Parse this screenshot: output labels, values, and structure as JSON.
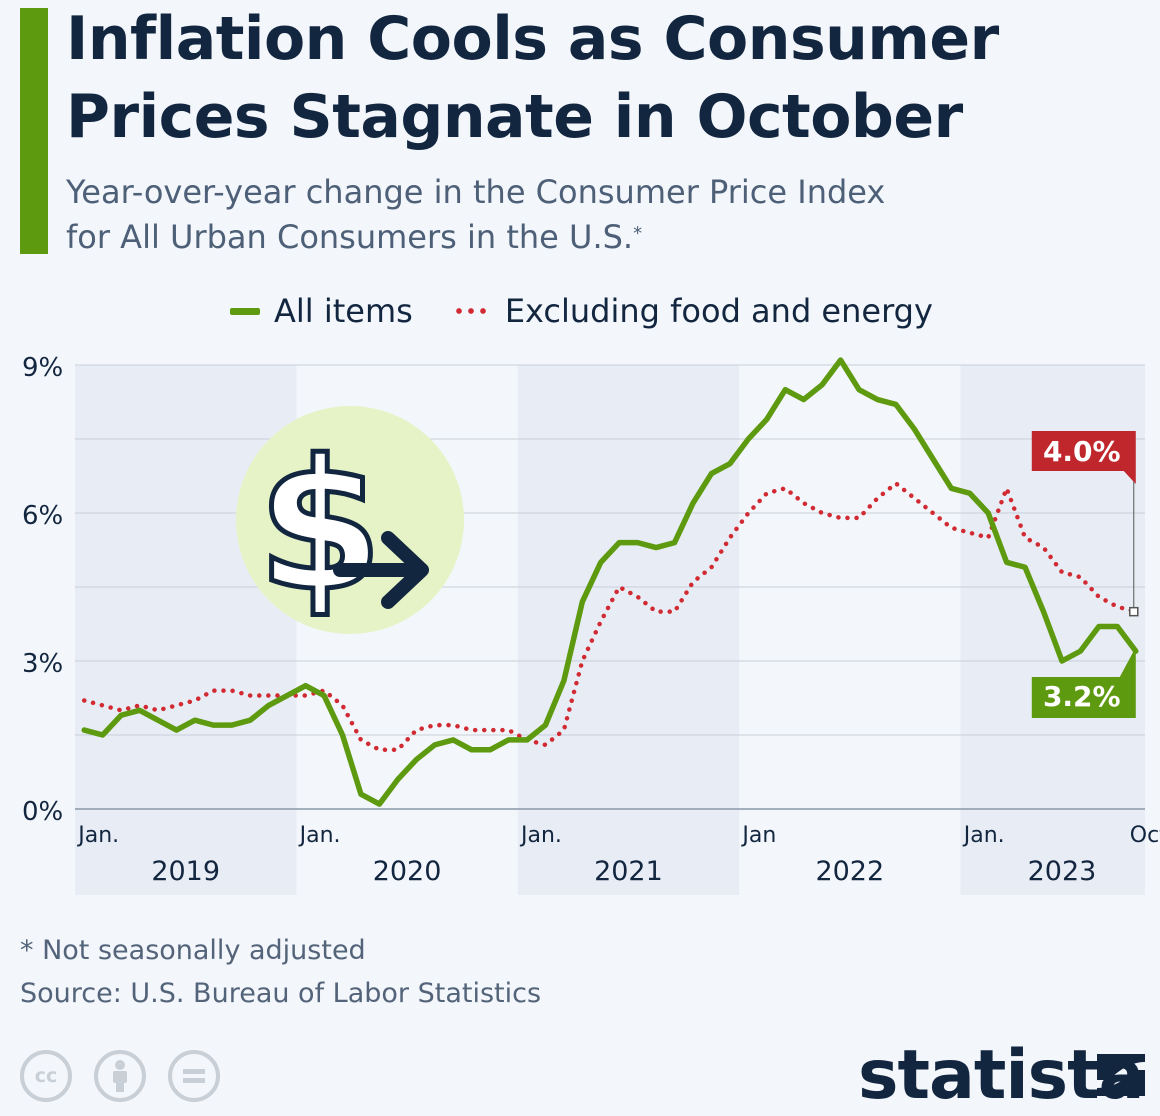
{
  "title_line1": "Inflation Cools as Consumer",
  "title_line2": "Prices Stagnate in October",
  "subtitle_line1": "Year-over-year change in the Consumer Price Index",
  "subtitle_line2": "for All Urban Consumers in the U.S.",
  "subtitle_footnote_mark": "*",
  "footnote": "* Not seasonally adjusted",
  "source": "Source: U.S. Bureau of Labor Statistics",
  "brand": "statista",
  "license_icons": [
    "cc-icon",
    "attribution-icon",
    "no-derivatives-icon"
  ],
  "colors": {
    "all_items": "#5e9a10",
    "core": "#d12a33",
    "title": "#12263f",
    "year_band": "#e8edf5",
    "label_red": "#c0272d",
    "label_green": "#5e9a10"
  },
  "chart_data": {
    "type": "line",
    "title": "Inflation Cools as Consumer Prices Stagnate in October",
    "ylim": [
      0,
      9
    ],
    "yticks": [
      0,
      3,
      6,
      9
    ],
    "ytick_labels": [
      "0%",
      "3%",
      "6%",
      "9%"
    ],
    "grid": true,
    "legend_position": "top",
    "x_month_labels": [
      {
        "index": 0,
        "label": "Jan."
      },
      {
        "index": 12,
        "label": "Jan."
      },
      {
        "index": 24,
        "label": "Jan."
      },
      {
        "index": 36,
        "label": "Jan"
      },
      {
        "index": 48,
        "label": "Jan."
      },
      {
        "index": 57,
        "label": "Oct."
      }
    ],
    "x_year_labels": [
      {
        "center_index": 5.5,
        "label": "2019"
      },
      {
        "center_index": 17.5,
        "label": "2020"
      },
      {
        "center_index": 29.5,
        "label": "2021"
      },
      {
        "center_index": 41.5,
        "label": "2022"
      },
      {
        "center_index": 53,
        "label": "2023"
      }
    ],
    "x_start": "2019-01",
    "x_end": "2023-10",
    "series": [
      {
        "name": "All items",
        "style": "solid",
        "values": [
          1.6,
          1.5,
          1.9,
          2.0,
          1.8,
          1.6,
          1.8,
          1.7,
          1.7,
          1.8,
          2.1,
          2.3,
          2.5,
          2.3,
          1.5,
          0.3,
          0.1,
          0.6,
          1.0,
          1.3,
          1.4,
          1.2,
          1.2,
          1.4,
          1.4,
          1.7,
          2.6,
          4.2,
          5.0,
          5.4,
          5.4,
          5.3,
          5.4,
          6.2,
          6.8,
          7.0,
          7.5,
          7.9,
          8.5,
          8.3,
          8.6,
          9.1,
          8.5,
          8.3,
          8.2,
          7.7,
          7.1,
          6.5,
          6.4,
          6.0,
          5.0,
          4.9,
          4.0,
          3.0,
          3.2,
          3.7,
          3.7,
          3.2
        ],
        "end_label": "3.2%"
      },
      {
        "name": "Excluding food and energy",
        "style": "dotted",
        "values": [
          2.2,
          2.1,
          2.0,
          2.1,
          2.0,
          2.1,
          2.2,
          2.4,
          2.4,
          2.3,
          2.3,
          2.3,
          2.3,
          2.4,
          2.1,
          1.4,
          1.2,
          1.2,
          1.6,
          1.7,
          1.7,
          1.6,
          1.6,
          1.6,
          1.4,
          1.3,
          1.6,
          3.0,
          3.8,
          4.5,
          4.3,
          4.0,
          4.0,
          4.6,
          4.9,
          5.5,
          6.0,
          6.4,
          6.5,
          6.2,
          6.0,
          5.9,
          5.9,
          6.3,
          6.6,
          6.3,
          6.0,
          5.7,
          5.6,
          5.5,
          6.5,
          5.5,
          5.3,
          4.8,
          4.7,
          4.3,
          4.1,
          4.0
        ],
        "end_label": "4.0%"
      }
    ]
  }
}
